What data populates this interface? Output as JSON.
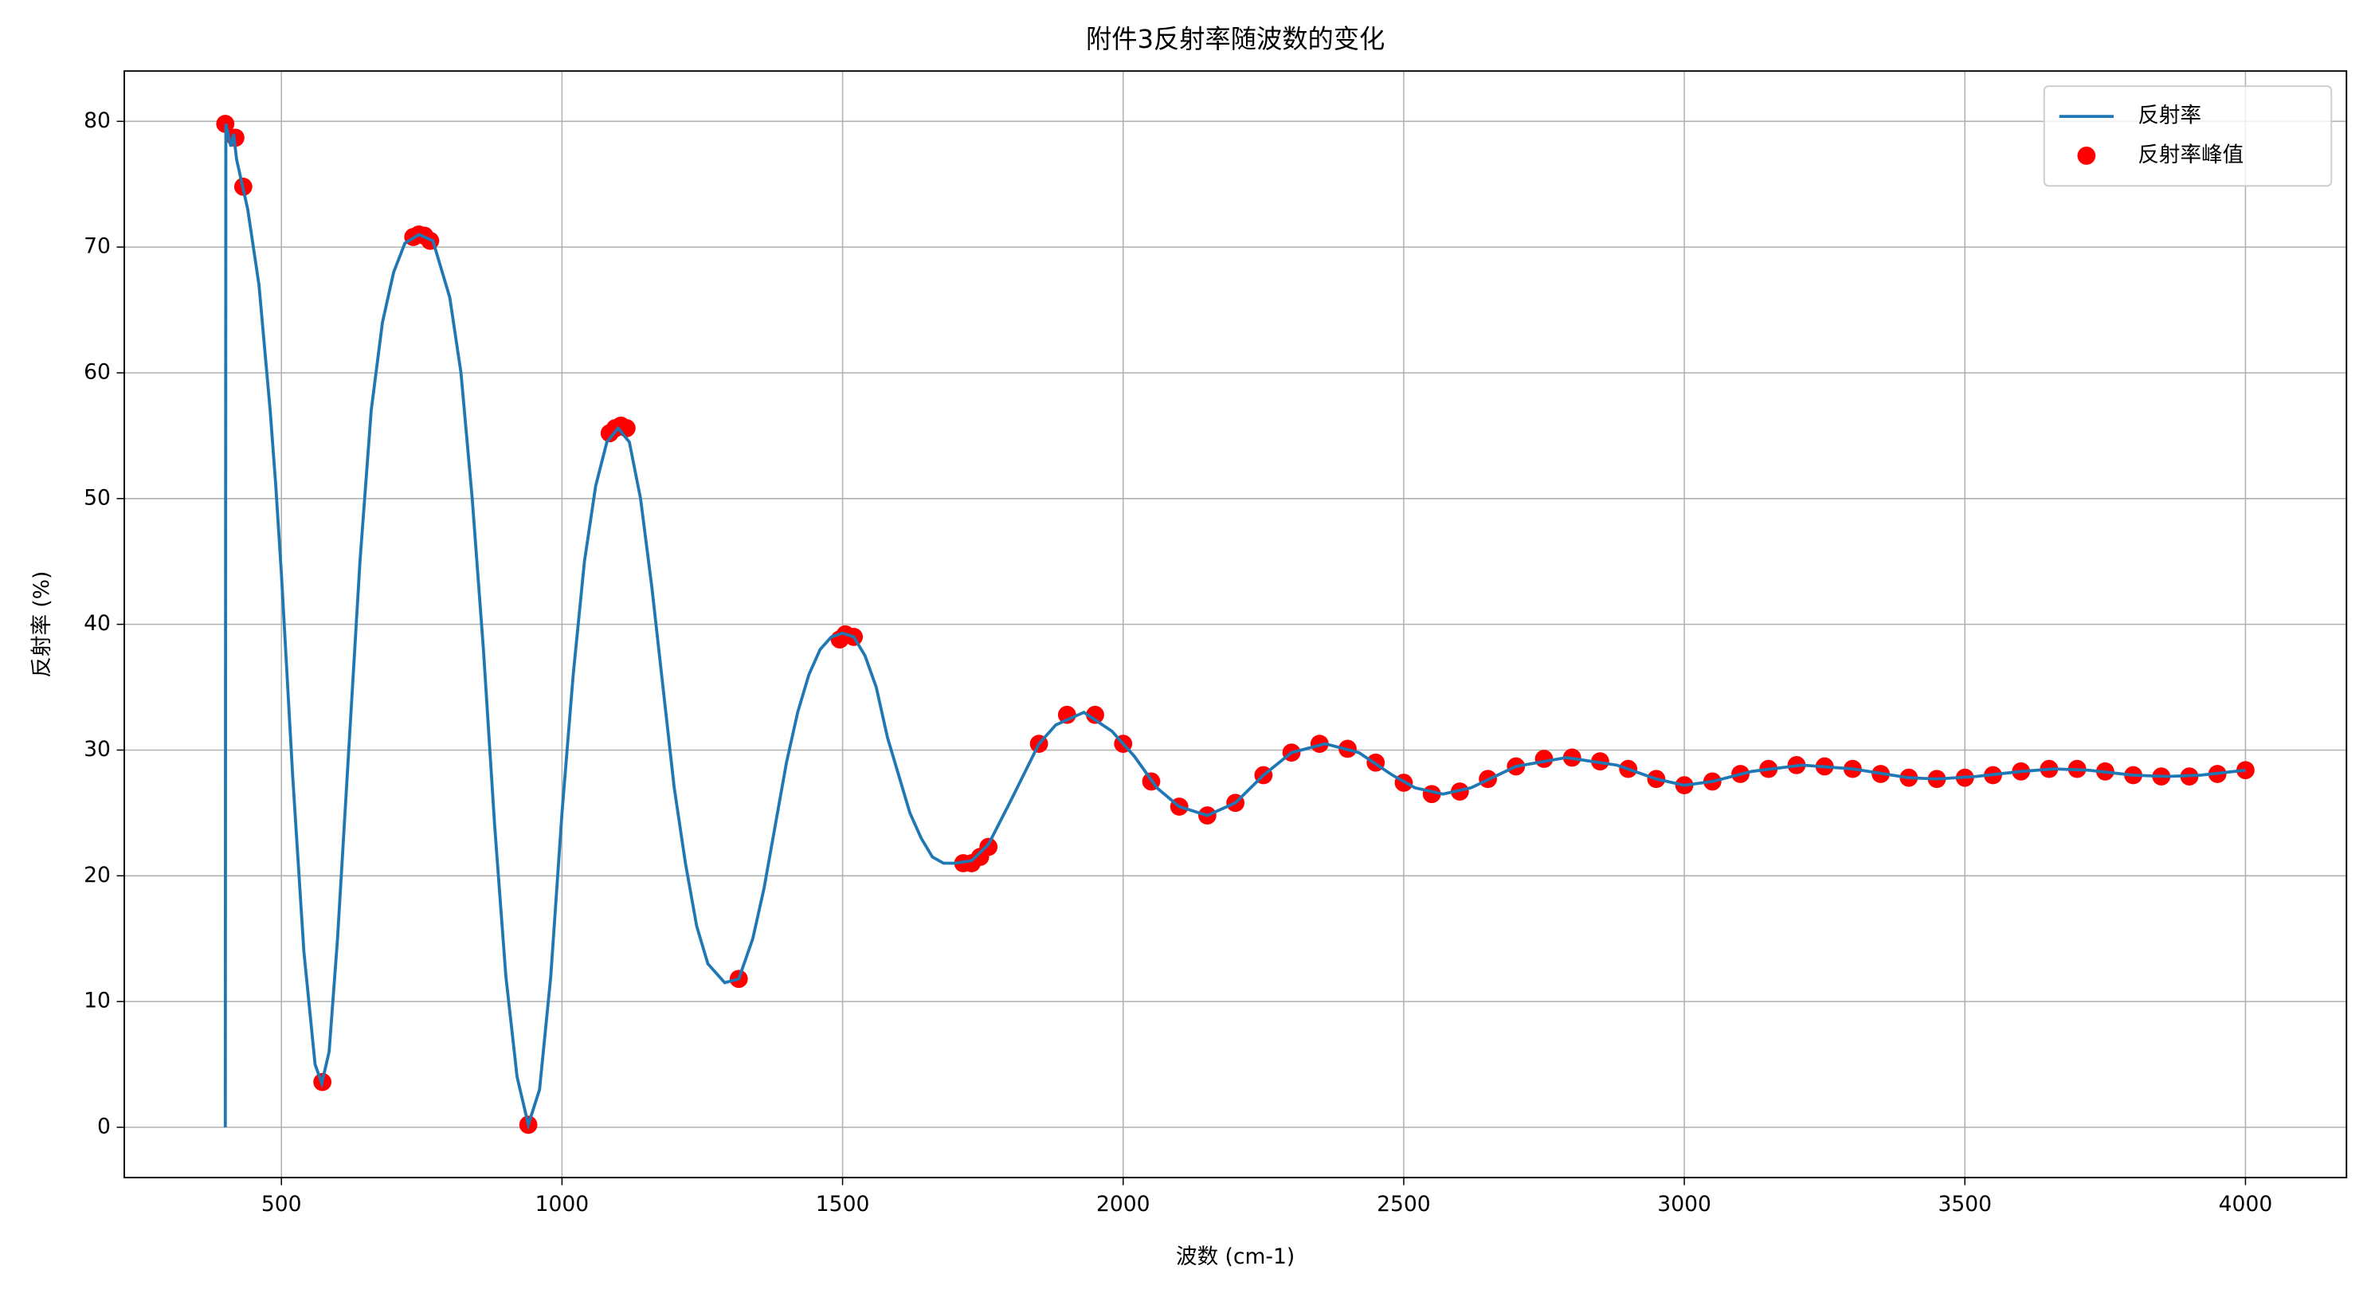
{
  "chart_data": {
    "type": "line",
    "title": "附件3反射率随波数的变化",
    "xlabel": "波数 (cm-1)",
    "ylabel": "反射率 (%)",
    "xlim": [
      220,
      4180
    ],
    "ylim": [
      -4,
      84
    ],
    "xticks": [
      500,
      1000,
      1500,
      2000,
      2500,
      3000,
      3500,
      4000
    ],
    "yticks": [
      0,
      10,
      20,
      30,
      40,
      50,
      60,
      70,
      80
    ],
    "grid": true,
    "legend": "upper right",
    "series": [
      {
        "name": "反射率",
        "type": "line",
        "color": "#1f77b4",
        "x": [
          400,
          401,
          410,
          415,
          420,
          430,
          440,
          450,
          460,
          470,
          480,
          490,
          500,
          520,
          540,
          560,
          572,
          585,
          600,
          620,
          640,
          660,
          680,
          700,
          720,
          745,
          770,
          800,
          820,
          840,
          860,
          880,
          900,
          920,
          940,
          960,
          980,
          1000,
          1020,
          1040,
          1060,
          1080,
          1100,
          1120,
          1140,
          1160,
          1180,
          1200,
          1220,
          1240,
          1260,
          1290,
          1315,
          1340,
          1360,
          1380,
          1400,
          1420,
          1440,
          1460,
          1480,
          1500,
          1520,
          1540,
          1560,
          1580,
          1600,
          1620,
          1640,
          1660,
          1680,
          1700,
          1730,
          1760,
          1800,
          1850,
          1880,
          1930,
          1980,
          2020,
          2060,
          2100,
          2150,
          2200,
          2250,
          2300,
          2360,
          2420,
          2480,
          2520,
          2570,
          2620,
          2700,
          2790,
          2880,
          2950,
          3000,
          3050,
          3120,
          3210,
          3300,
          3400,
          3450,
          3520,
          3600,
          3660,
          3720,
          3800,
          3860,
          3920,
          4000
        ],
        "values": [
          0,
          79.8,
          78,
          79,
          77,
          75,
          73,
          70,
          67,
          62,
          57,
          51,
          44,
          28,
          14,
          5,
          3.5,
          6,
          15,
          30,
          45,
          57,
          64,
          68,
          70.3,
          71,
          70.5,
          66,
          60,
          50,
          38,
          24,
          12,
          4,
          0.2,
          3,
          12,
          25,
          36,
          45,
          51,
          54.5,
          55.6,
          54.5,
          50,
          43,
          35,
          27,
          21,
          16,
          13,
          11.5,
          11.8,
          15,
          19,
          24,
          29,
          33,
          36,
          38,
          39,
          39.3,
          39,
          37.5,
          35,
          31,
          28,
          25,
          23,
          21.5,
          21,
          21,
          21.2,
          22.5,
          26,
          30.5,
          32,
          33,
          31.5,
          29.5,
          27,
          25.5,
          24.8,
          25.8,
          28,
          29.8,
          30.5,
          29.8,
          28,
          27,
          26.5,
          27,
          28.7,
          29.4,
          28.8,
          27.7,
          27.2,
          27.5,
          28.3,
          28.8,
          28.5,
          27.8,
          27.7,
          27.9,
          28.3,
          28.5,
          28.4,
          28.0,
          27.9,
          28.0,
          28.4
        ]
      },
      {
        "name": "反射率峰值",
        "type": "scatter",
        "color": "#ff0000",
        "x": [
          400,
          418,
          432,
          573,
          735,
          745,
          755,
          765,
          940,
          1085,
          1095,
          1105,
          1115,
          1315,
          1495,
          1505,
          1520,
          1715,
          1730,
          1745,
          1760,
          1850,
          1900,
          1950,
          2000,
          2050,
          2100,
          2150,
          2200,
          2250,
          2300,
          2350,
          2400,
          2450,
          2500,
          2550,
          2600,
          2650,
          2700,
          2750,
          2800,
          2850,
          2900,
          2950,
          3000,
          3050,
          3100,
          3150,
          3200,
          3250,
          3300,
          3350,
          3400,
          3450,
          3500,
          3550,
          3600,
          3650,
          3700,
          3750,
          3800,
          3850,
          3900,
          3950,
          4000
        ],
        "values": [
          79.8,
          78.7,
          74.8,
          3.6,
          70.8,
          71,
          70.9,
          70.5,
          0.2,
          55.2,
          55.6,
          55.8,
          55.6,
          11.8,
          38.8,
          39.2,
          39,
          21,
          21,
          21.5,
          22.3,
          30.5,
          32.8,
          32.8,
          30.5,
          27.5,
          25.5,
          24.8,
          25.8,
          28,
          29.8,
          30.5,
          30.1,
          29,
          27.4,
          26.5,
          26.7,
          27.7,
          28.7,
          29.3,
          29.4,
          29.1,
          28.5,
          27.7,
          27.2,
          27.5,
          28.1,
          28.5,
          28.8,
          28.7,
          28.5,
          28.1,
          27.8,
          27.7,
          27.8,
          28.0,
          28.3,
          28.5,
          28.5,
          28.3,
          28.0,
          27.9,
          27.9,
          28.1,
          28.4
        ]
      }
    ]
  }
}
